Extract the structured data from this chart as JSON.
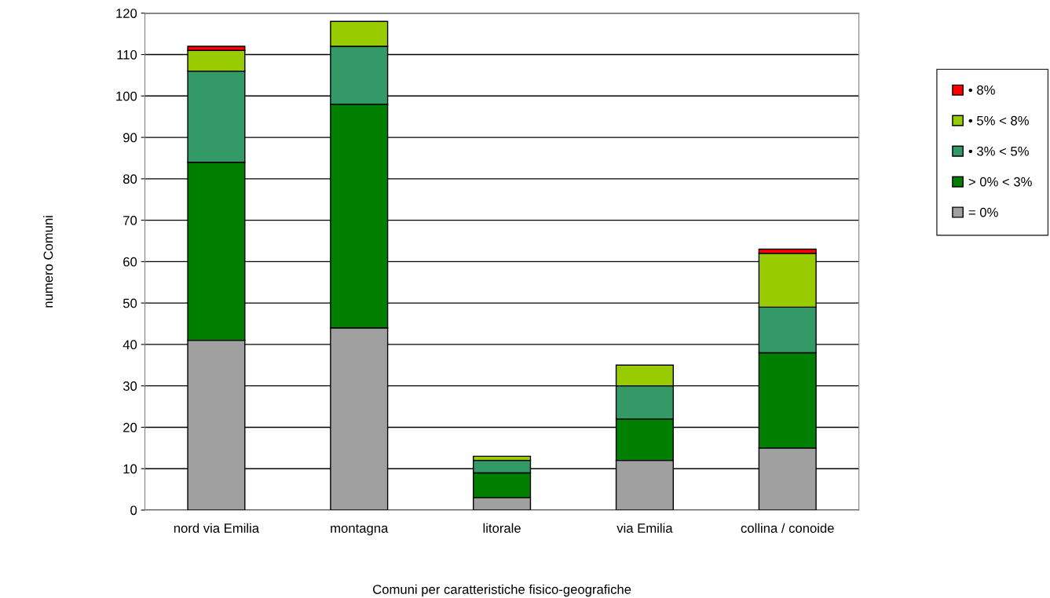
{
  "chart_data": {
    "type": "bar",
    "stacked": true,
    "xlabel": "Comuni per caratteristiche fisico-geografiche",
    "ylabel": "numero Comuni",
    "categories": [
      "nord via Emilia",
      "montagna",
      "litorale",
      "via Emilia",
      "collina / conoide"
    ],
    "series": [
      {
        "name": "= 0%",
        "color": "#a0a0a0",
        "values": [
          41,
          44,
          3,
          12,
          15
        ]
      },
      {
        "name": "> 0% < 3%",
        "color": "#007f00",
        "values": [
          43,
          54,
          6,
          10,
          23
        ]
      },
      {
        "name": "• 3% < 5%",
        "color": "#339966",
        "values": [
          22,
          14,
          3,
          8,
          11
        ]
      },
      {
        "name": "• 5% < 8%",
        "color": "#99cc00",
        "values": [
          5,
          6,
          1,
          5,
          13
        ]
      },
      {
        "name": "• 8%",
        "color": "#ff0000",
        "values": [
          1,
          0,
          0,
          0,
          1
        ]
      }
    ],
    "ylim": [
      0,
      120
    ],
    "yticks": [
      0,
      10,
      20,
      30,
      40,
      50,
      60,
      70,
      80,
      90,
      100,
      110,
      120
    ],
    "grid": "y",
    "legend": "right"
  }
}
